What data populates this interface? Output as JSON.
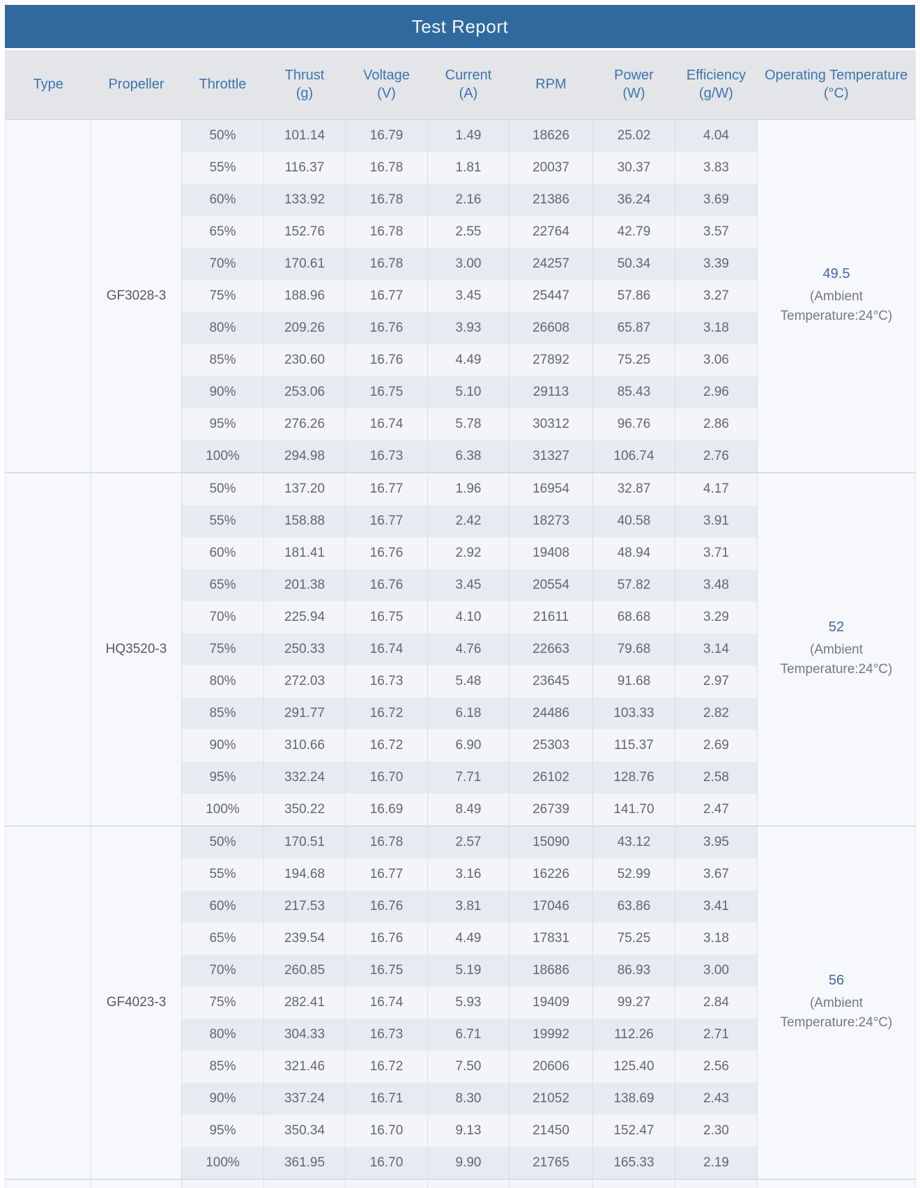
{
  "title": "Test Report",
  "columns": [
    {
      "label": "Type",
      "unit": ""
    },
    {
      "label": "Propeller",
      "unit": ""
    },
    {
      "label": "Throttle",
      "unit": ""
    },
    {
      "label": "Thrust",
      "unit": "(g)"
    },
    {
      "label": "Voltage",
      "unit": "(V)"
    },
    {
      "label": "Current",
      "unit": "(A)"
    },
    {
      "label": "RPM",
      "unit": ""
    },
    {
      "label": "Power",
      "unit": "(W)"
    },
    {
      "label": "Efficiency",
      "unit": "(g/W)"
    },
    {
      "label": "Operating Temperature",
      "unit": "(°C)"
    }
  ],
  "colors": {
    "title_bar": "#2f699e",
    "title_text": "#f2f6fa",
    "header_bg": "#e3e5e8",
    "header_text": "#3e74ad",
    "row_dark": "#e7ebf1",
    "row_light": "#f3f5f9",
    "merged_bg": "#f6f8fc",
    "data_text": "#63676d",
    "temp_value": "#3f66ad",
    "temp_note": "#75797e"
  },
  "groups": [
    {
      "type": "",
      "propeller": "GF3028-3",
      "operating_temperature": "49.5",
      "ambient_note": "(Ambient Temperature:24°C)",
      "rows": [
        {
          "throttle": "50%",
          "thrust": "101.14",
          "voltage": "16.79",
          "current": "1.49",
          "rpm": "18626",
          "power": "25.02",
          "efficiency": "4.04"
        },
        {
          "throttle": "55%",
          "thrust": "116.37",
          "voltage": "16.78",
          "current": "1.81",
          "rpm": "20037",
          "power": "30.37",
          "efficiency": "3.83"
        },
        {
          "throttle": "60%",
          "thrust": "133.92",
          "voltage": "16.78",
          "current": "2.16",
          "rpm": "21386",
          "power": "36.24",
          "efficiency": "3.69"
        },
        {
          "throttle": "65%",
          "thrust": "152.76",
          "voltage": "16.78",
          "current": "2.55",
          "rpm": "22764",
          "power": "42.79",
          "efficiency": "3.57"
        },
        {
          "throttle": "70%",
          "thrust": "170.61",
          "voltage": "16.78",
          "current": "3.00",
          "rpm": "24257",
          "power": "50.34",
          "efficiency": "3.39"
        },
        {
          "throttle": "75%",
          "thrust": "188.96",
          "voltage": "16.77",
          "current": "3.45",
          "rpm": "25447",
          "power": "57.86",
          "efficiency": "3.27"
        },
        {
          "throttle": "80%",
          "thrust": "209.26",
          "voltage": "16.76",
          "current": "3.93",
          "rpm": "26608",
          "power": "65.87",
          "efficiency": "3.18"
        },
        {
          "throttle": "85%",
          "thrust": "230.60",
          "voltage": "16.76",
          "current": "4.49",
          "rpm": "27892",
          "power": "75.25",
          "efficiency": "3.06"
        },
        {
          "throttle": "90%",
          "thrust": "253.06",
          "voltage": "16.75",
          "current": "5.10",
          "rpm": "29113",
          "power": "85.43",
          "efficiency": "2.96"
        },
        {
          "throttle": "95%",
          "thrust": "276.26",
          "voltage": "16.74",
          "current": "5.78",
          "rpm": "30312",
          "power": "96.76",
          "efficiency": "2.86"
        },
        {
          "throttle": "100%",
          "thrust": "294.98",
          "voltage": "16.73",
          "current": "6.38",
          "rpm": "31327",
          "power": "106.74",
          "efficiency": "2.76"
        }
      ]
    },
    {
      "type": "",
      "propeller": "HQ3520-3",
      "operating_temperature": "52",
      "ambient_note": "(Ambient Temperature:24°C)",
      "rows": [
        {
          "throttle": "50%",
          "thrust": "137.20",
          "voltage": "16.77",
          "current": "1.96",
          "rpm": "16954",
          "power": "32.87",
          "efficiency": "4.17"
        },
        {
          "throttle": "55%",
          "thrust": "158.88",
          "voltage": "16.77",
          "current": "2.42",
          "rpm": "18273",
          "power": "40.58",
          "efficiency": "3.91"
        },
        {
          "throttle": "60%",
          "thrust": "181.41",
          "voltage": "16.76",
          "current": "2.92",
          "rpm": "19408",
          "power": "48.94",
          "efficiency": "3.71"
        },
        {
          "throttle": "65%",
          "thrust": "201.38",
          "voltage": "16.76",
          "current": "3.45",
          "rpm": "20554",
          "power": "57.82",
          "efficiency": "3.48"
        },
        {
          "throttle": "70%",
          "thrust": "225.94",
          "voltage": "16.75",
          "current": "4.10",
          "rpm": "21611",
          "power": "68.68",
          "efficiency": "3.29"
        },
        {
          "throttle": "75%",
          "thrust": "250.33",
          "voltage": "16.74",
          "current": "4.76",
          "rpm": "22663",
          "power": "79.68",
          "efficiency": "3.14"
        },
        {
          "throttle": "80%",
          "thrust": "272.03",
          "voltage": "16.73",
          "current": "5.48",
          "rpm": "23645",
          "power": "91.68",
          "efficiency": "2.97"
        },
        {
          "throttle": "85%",
          "thrust": "291.77",
          "voltage": "16.72",
          "current": "6.18",
          "rpm": "24486",
          "power": "103.33",
          "efficiency": "2.82"
        },
        {
          "throttle": "90%",
          "thrust": "310.66",
          "voltage": "16.72",
          "current": "6.90",
          "rpm": "25303",
          "power": "115.37",
          "efficiency": "2.69"
        },
        {
          "throttle": "95%",
          "thrust": "332.24",
          "voltage": "16.70",
          "current": "7.71",
          "rpm": "26102",
          "power": "128.76",
          "efficiency": "2.58"
        },
        {
          "throttle": "100%",
          "thrust": "350.22",
          "voltage": "16.69",
          "current": "8.49",
          "rpm": "26739",
          "power": "141.70",
          "efficiency": "2.47"
        }
      ]
    },
    {
      "type": "",
      "propeller": "GF4023-3",
      "operating_temperature": "56",
      "ambient_note": "(Ambient Temperature:24°C)",
      "rows": [
        {
          "throttle": "50%",
          "thrust": "170.51",
          "voltage": "16.78",
          "current": "2.57",
          "rpm": "15090",
          "power": "43.12",
          "efficiency": "3.95"
        },
        {
          "throttle": "55%",
          "thrust": "194.68",
          "voltage": "16.77",
          "current": "3.16",
          "rpm": "16226",
          "power": "52.99",
          "efficiency": "3.67"
        },
        {
          "throttle": "60%",
          "thrust": "217.53",
          "voltage": "16.76",
          "current": "3.81",
          "rpm": "17046",
          "power": "63.86",
          "efficiency": "3.41"
        },
        {
          "throttle": "65%",
          "thrust": "239.54",
          "voltage": "16.76",
          "current": "4.49",
          "rpm": "17831",
          "power": "75.25",
          "efficiency": "3.18"
        },
        {
          "throttle": "70%",
          "thrust": "260.85",
          "voltage": "16.75",
          "current": "5.19",
          "rpm": "18686",
          "power": "86.93",
          "efficiency": "3.00"
        },
        {
          "throttle": "75%",
          "thrust": "282.41",
          "voltage": "16.74",
          "current": "5.93",
          "rpm": "19409",
          "power": "99.27",
          "efficiency": "2.84"
        },
        {
          "throttle": "80%",
          "thrust": "304.33",
          "voltage": "16.73",
          "current": "6.71",
          "rpm": "19992",
          "power": "112.26",
          "efficiency": "2.71"
        },
        {
          "throttle": "85%",
          "thrust": "321.46",
          "voltage": "16.72",
          "current": "7.50",
          "rpm": "20606",
          "power": "125.40",
          "efficiency": "2.56"
        },
        {
          "throttle": "90%",
          "thrust": "337.24",
          "voltage": "16.71",
          "current": "8.30",
          "rpm": "21052",
          "power": "138.69",
          "efficiency": "2.43"
        },
        {
          "throttle": "95%",
          "thrust": "350.34",
          "voltage": "16.70",
          "current": "9.13",
          "rpm": "21450",
          "power": "152.47",
          "efficiency": "2.30"
        },
        {
          "throttle": "100%",
          "thrust": "361.95",
          "voltage": "16.70",
          "current": "9.90",
          "rpm": "21765",
          "power": "165.33",
          "efficiency": "2.19"
        }
      ]
    }
  ]
}
